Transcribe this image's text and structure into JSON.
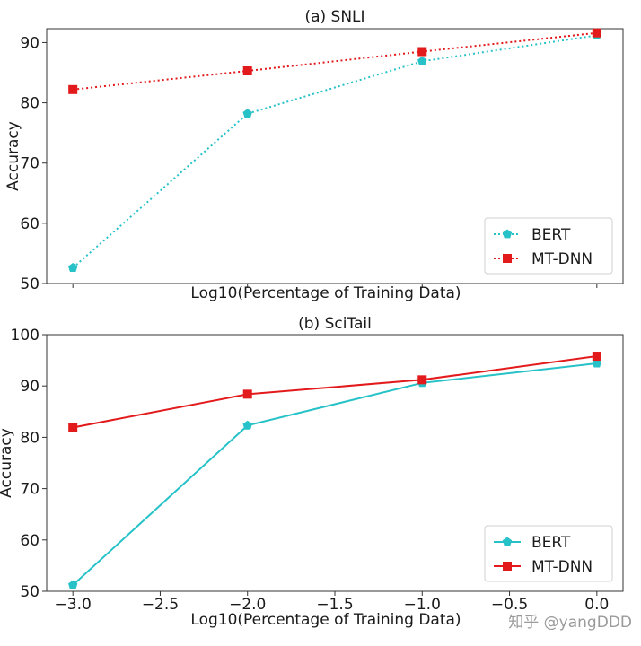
{
  "chart_data": [
    {
      "type": "line",
      "title": "(a) SNLI",
      "xlabel": "Log10(Percentage of Training Data)",
      "ylabel": "Accuracy",
      "x": [
        -3.0,
        -2.0,
        -1.0,
        0.0
      ],
      "xlim": [
        -3.15,
        0.15
      ],
      "ylim": [
        50,
        92.3
      ],
      "yticks": [
        50,
        60,
        70,
        80,
        90
      ],
      "ytick_labels": [
        "50",
        "60",
        "70",
        "80",
        "90"
      ],
      "xticks": [],
      "xtick_labels": [],
      "legend_position": "bottom-right",
      "line_style": "dotted",
      "series": [
        {
          "name": "BERT",
          "values": [
            52.6,
            78.2,
            86.9,
            91.2
          ],
          "color": "#26c2c8",
          "marker": "pentagon"
        },
        {
          "name": "MT-DNN",
          "values": [
            82.2,
            85.3,
            88.5,
            91.6
          ],
          "color": "#e31a1c",
          "marker": "square"
        }
      ]
    },
    {
      "type": "line",
      "title": "(b) SciTail",
      "xlabel": "Log10(Percentage of Training Data)",
      "ylabel": "Accuracy",
      "x": [
        -3.0,
        -2.0,
        -1.0,
        0.0
      ],
      "xlim": [
        -3.15,
        0.15
      ],
      "ylim": [
        50,
        100
      ],
      "yticks": [
        50,
        60,
        70,
        80,
        90,
        100
      ],
      "ytick_labels": [
        "50",
        "60",
        "70",
        "80",
        "90",
        "100"
      ],
      "xticks": [
        -3.0,
        -2.5,
        -2.0,
        -1.5,
        -1.0,
        -0.5,
        0.0
      ],
      "xtick_labels": [
        "−3.0",
        "−2.5",
        "−2.0",
        "−1.5",
        "−1.0",
        "−0.5",
        "0.0"
      ],
      "legend_position": "bottom-right",
      "line_style": "solid",
      "series": [
        {
          "name": "BERT",
          "values": [
            51.2,
            82.3,
            90.6,
            94.4
          ],
          "color": "#26c2c8",
          "marker": "pentagon"
        },
        {
          "name": "MT-DNN",
          "values": [
            81.9,
            88.4,
            91.2,
            95.8
          ],
          "color": "#e31a1c",
          "marker": "square"
        }
      ]
    }
  ],
  "watermark": "知乎 @yangDDD"
}
